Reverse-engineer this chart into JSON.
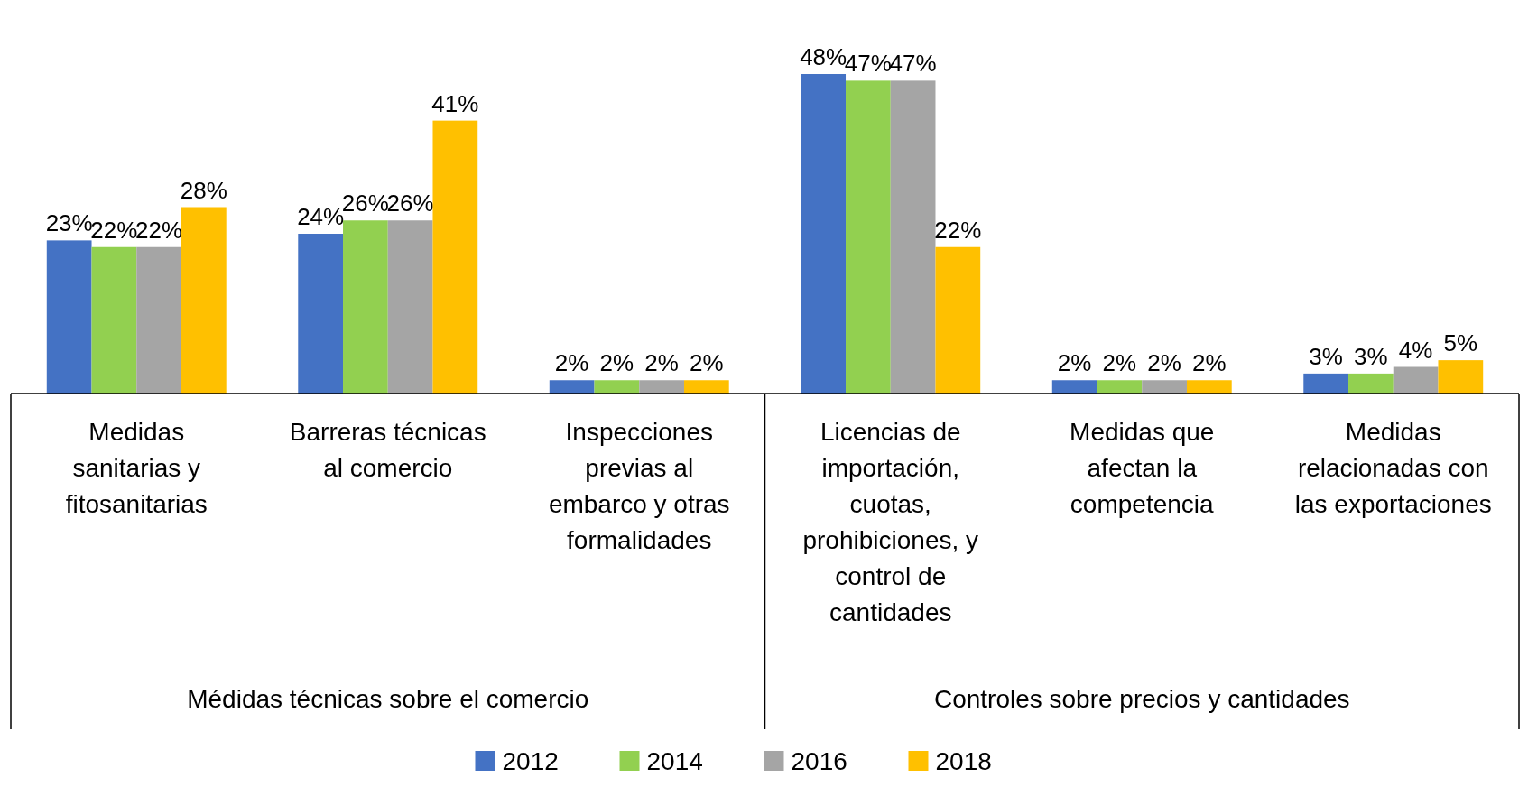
{
  "chart_data": {
    "type": "bar",
    "categories": [
      "Medidas sanitarias y fitosanitarias",
      "Barreras técnicas al comercio",
      "Inspecciones previas al embarco y otras formalidades",
      "Licencias de importación, cuotas, prohibiciones, y control de cantidades",
      "Medidas que afectan la competencia",
      "Medidas relacionadas con las exportaciones"
    ],
    "series": [
      {
        "name": "2012",
        "color": "#4472c4",
        "values": [
          23,
          24,
          2,
          48,
          2,
          3
        ],
        "value_labels": [
          "23%",
          "24%",
          "2%",
          "48%",
          "2%",
          "3%"
        ]
      },
      {
        "name": "2014",
        "color": "#92d050",
        "values": [
          22,
          26,
          2,
          47,
          2,
          3
        ],
        "value_labels": [
          "22%",
          "26%",
          "2%",
          "47%",
          "2%",
          "3%"
        ]
      },
      {
        "name": "2016",
        "color": "#a5a5a5",
        "values": [
          22,
          26,
          2,
          47,
          2,
          4
        ],
        "value_labels": [
          "22%",
          "26%",
          "2%",
          "47%",
          "2%",
          "4%"
        ]
      },
      {
        "name": "2018",
        "color": "#ffc000",
        "values": [
          28,
          41,
          2,
          22,
          2,
          5
        ],
        "value_labels": [
          "28%",
          "41%",
          "2%",
          "22%",
          "2%",
          "5%"
        ]
      }
    ],
    "annotations": [
      "Médidas técnicas sobre el comercio",
      "Controles sobre precios y cantidades"
    ],
    "legend": "bottom"
  }
}
